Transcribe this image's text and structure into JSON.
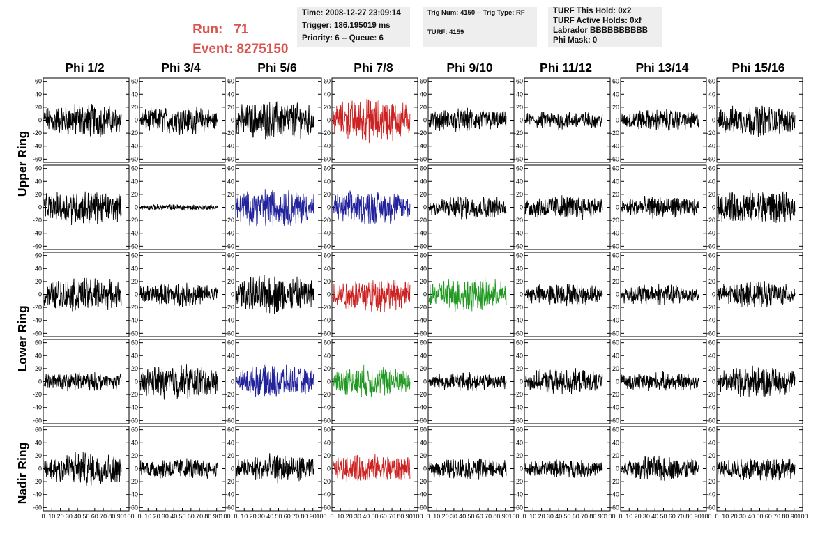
{
  "header": {
    "run_label": "Run:",
    "run_value": "71",
    "event_label": "Event:",
    "event_value": "8275150",
    "accent_color": "#d9534f"
  },
  "info_boxes": {
    "time": "Time: 2008-12-27 23:09:14",
    "trigger": "Trigger: 186.195019 ms",
    "priority": "Priority: 6 -- Queue: 6",
    "trig_num": "Trig Num: 4150 -- Trig Type: RF",
    "turf": "TURF: 4159",
    "turf_this_hold": "TURF This Hold: 0x2",
    "turf_active_holds": "TURF Active Holds: 0xf",
    "labrador": "Labrador BBBBBBBBBB",
    "phi_mask": "Phi Mask: 0"
  },
  "columns": [
    "Phi 1/2",
    "Phi 3/4",
    "Phi 5/6",
    "Phi 7/8",
    "Phi 9/10",
    "Phi 11/12",
    "Phi 13/14",
    "Phi 15/16"
  ],
  "ring_labels": [
    "Upper Ring",
    "Lower Ring",
    "Nadir Ring"
  ],
  "chart_data": {
    "type": "line",
    "description_rows": 5,
    "y_ticks": [
      -60,
      -40,
      -20,
      0,
      20,
      40,
      60
    ],
    "ylim": [
      -65,
      65
    ],
    "x_ticks": [
      0,
      10,
      20,
      30,
      40,
      50,
      60,
      70,
      80,
      90,
      100
    ],
    "xlim": [
      0,
      100
    ],
    "n_samples": 260,
    "colors": {
      "k": "#000000",
      "r": "#cc2222",
      "b": "#22229c",
      "g": "#229922"
    },
    "panel_colors": [
      [
        "k",
        "k",
        "k",
        "r",
        "k",
        "k",
        "k",
        "k"
      ],
      [
        "k",
        "k",
        "b",
        "b",
        "k",
        "k",
        "k",
        "k"
      ],
      [
        "k",
        "k",
        "k",
        "r",
        "g",
        "k",
        "k",
        "k"
      ],
      [
        "k",
        "k",
        "b",
        "g",
        "k",
        "k",
        "k",
        "k"
      ],
      [
        "k",
        "k",
        "k",
        "r",
        "k",
        "k",
        "k",
        "k"
      ]
    ],
    "panel_amplitude": [
      [
        22,
        18,
        25,
        28,
        15,
        12,
        14,
        20
      ],
      [
        22,
        4,
        25,
        22,
        15,
        16,
        14,
        22
      ],
      [
        22,
        15,
        25,
        22,
        22,
        14,
        14,
        16
      ],
      [
        12,
        22,
        20,
        20,
        12,
        16,
        12,
        20
      ],
      [
        22,
        14,
        18,
        18,
        14,
        12,
        16,
        16
      ]
    ]
  }
}
